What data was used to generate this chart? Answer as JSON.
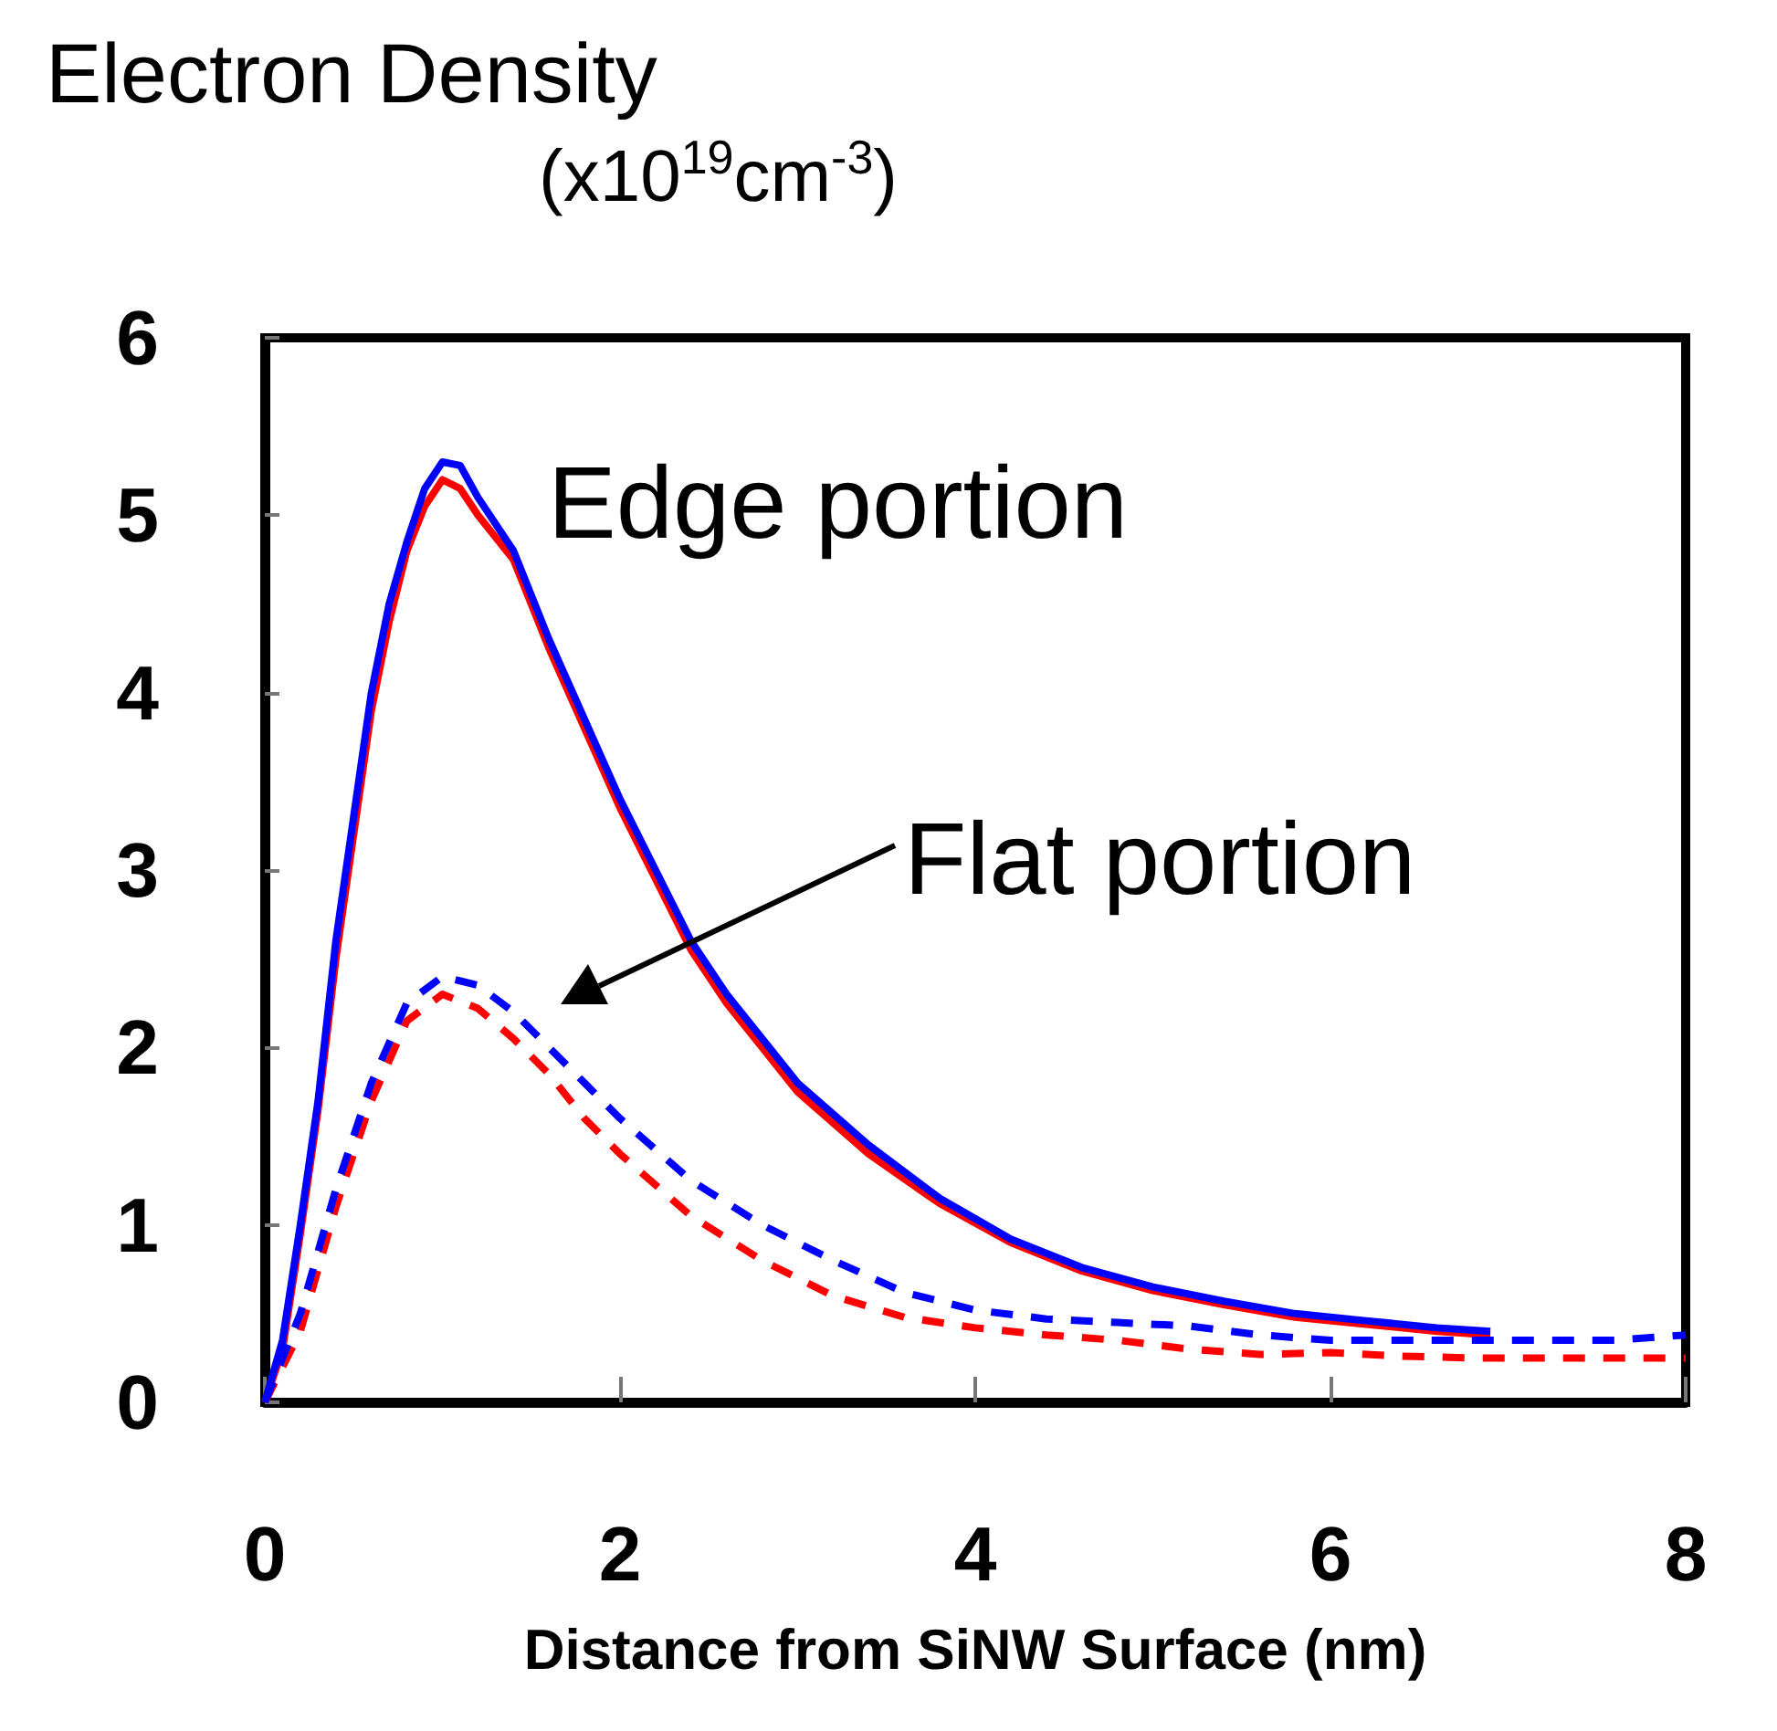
{
  "chart_data": {
    "type": "line",
    "ylabel": "Electron Density\n(x10$^{19}$cm$^{-3}$)",
    "xlabel": "Distance from SiNW Surface (nm)",
    "xlim": [
      0,
      8
    ],
    "xticks": [
      0,
      2,
      4,
      6,
      8
    ],
    "ylim": [
      0,
      6
    ],
    "yticks": [
      0,
      1,
      2,
      3,
      4,
      5,
      6
    ],
    "grid": false,
    "marker": "none",
    "annotations": [
      "Edge portion",
      "Flat portion"
    ],
    "series": [
      {
        "color": "#ff0000",
        "line_style": "solid",
        "x": [
          0,
          0.1,
          0.2,
          0.3,
          0.4,
          0.5,
          0.6,
          0.7,
          0.8,
          0.9,
          1.0,
          1.1,
          1.2,
          1.4,
          1.6,
          1.8,
          2.0,
          2.2,
          2.4,
          2.6,
          2.8,
          3.0,
          3.4,
          3.8,
          4.2,
          4.6,
          5.0,
          5.4,
          5.8,
          6.2,
          6.6,
          6.9
        ],
        "values": [
          0,
          0.3,
          0.95,
          1.65,
          2.5,
          3.2,
          3.9,
          4.4,
          4.8,
          5.05,
          5.2,
          5.15,
          5.0,
          4.75,
          4.25,
          3.8,
          3.35,
          2.95,
          2.55,
          2.25,
          2.0,
          1.75,
          1.4,
          1.12,
          0.9,
          0.74,
          0.63,
          0.55,
          0.48,
          0.44,
          0.4,
          0.38
        ]
      },
      {
        "color": "#0000ff",
        "line_style": "solid",
        "x": [
          0,
          0.1,
          0.2,
          0.3,
          0.4,
          0.5,
          0.6,
          0.7,
          0.8,
          0.9,
          1.0,
          1.1,
          1.2,
          1.4,
          1.6,
          1.8,
          2.0,
          2.2,
          2.4,
          2.6,
          2.8,
          3.0,
          3.4,
          3.8,
          4.2,
          4.6,
          5.0,
          5.4,
          5.8,
          6.2,
          6.6,
          6.9
        ],
        "values": [
          0,
          0.35,
          1.0,
          1.7,
          2.6,
          3.3,
          4.0,
          4.5,
          4.85,
          5.15,
          5.3,
          5.28,
          5.1,
          4.8,
          4.3,
          3.85,
          3.4,
          3.0,
          2.6,
          2.3,
          2.05,
          1.8,
          1.45,
          1.15,
          0.92,
          0.76,
          0.65,
          0.57,
          0.5,
          0.46,
          0.42,
          0.4
        ]
      },
      {
        "color": "#ff0000",
        "line_style": "dashed",
        "x": [
          0,
          0.2,
          0.4,
          0.6,
          0.8,
          1.0,
          1.2,
          1.4,
          1.6,
          1.8,
          2.0,
          2.4,
          2.8,
          3.2,
          3.6,
          4.0,
          4.4,
          4.8,
          5.2,
          5.6,
          6.0,
          6.4,
          6.8,
          7.2,
          7.6,
          8.0
        ],
        "values": [
          0,
          0.4,
          1.1,
          1.7,
          2.15,
          2.3,
          2.22,
          2.05,
          1.85,
          1.6,
          1.4,
          1.05,
          0.8,
          0.6,
          0.48,
          0.42,
          0.38,
          0.35,
          0.3,
          0.27,
          0.28,
          0.26,
          0.25,
          0.25,
          0.25,
          0.25
        ]
      },
      {
        "color": "#0000ff",
        "line_style": "dashed",
        "x": [
          0,
          0.2,
          0.4,
          0.6,
          0.8,
          1.0,
          1.2,
          1.4,
          1.6,
          1.8,
          2.0,
          2.4,
          2.8,
          3.2,
          3.6,
          4.0,
          4.4,
          4.8,
          5.2,
          5.6,
          6.0,
          6.4,
          6.8,
          7.2,
          7.6,
          8.0
        ],
        "values": [
          0,
          0.5,
          1.2,
          1.8,
          2.25,
          2.4,
          2.35,
          2.2,
          2.0,
          1.8,
          1.6,
          1.25,
          1.0,
          0.8,
          0.62,
          0.52,
          0.47,
          0.45,
          0.43,
          0.38,
          0.35,
          0.35,
          0.35,
          0.35,
          0.35,
          0.38
        ]
      }
    ]
  }
}
